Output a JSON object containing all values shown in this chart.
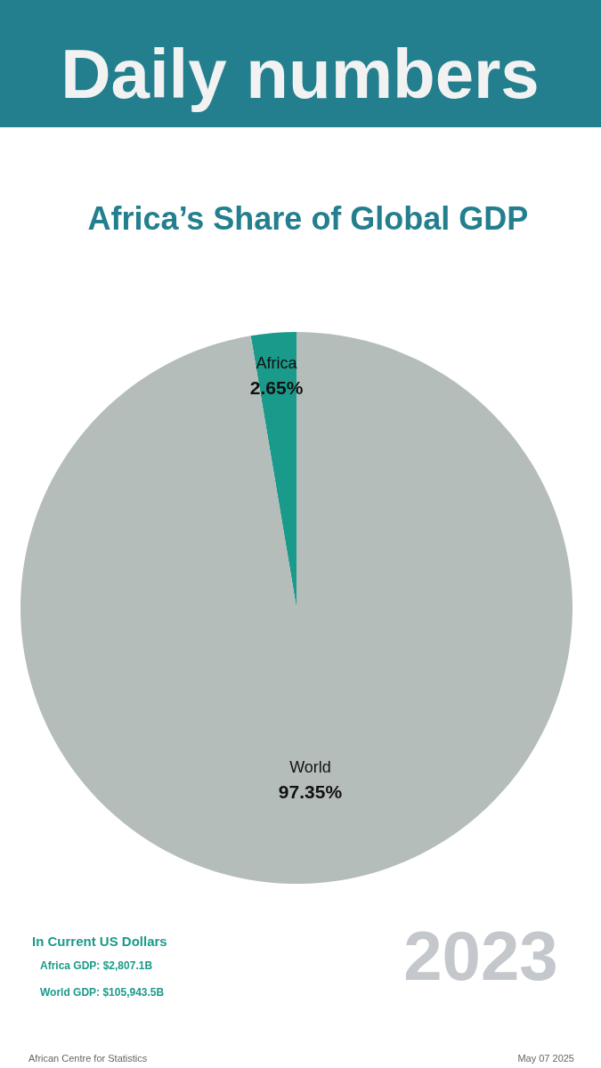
{
  "chart_data": {
    "type": "pie",
    "title": "Daily numbers",
    "subtitle": "Africa’s Share of Global GDP",
    "categories": [
      "Africa",
      "World"
    ],
    "values": [
      2.65,
      97.35
    ],
    "colors": [
      "#1a9a8a",
      "#b5bdbb"
    ],
    "value_labels": [
      "2.65%",
      "97.35%"
    ],
    "annotations": [
      "In Current US Dollars",
      "Africa GDP: $2,807.1B",
      "World GDP: $105,943.5B",
      "2023",
      "African Centre for Statistics",
      "May 07 2025"
    ]
  }
}
